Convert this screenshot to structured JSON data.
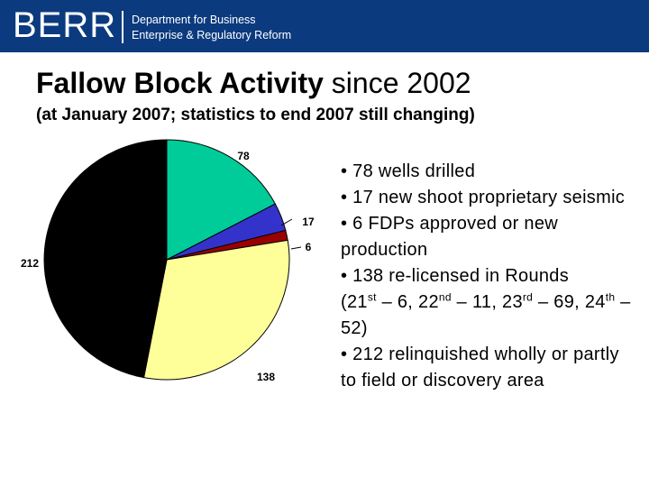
{
  "header": {
    "logo_text": "BERR",
    "dept_line1": "Department for Business",
    "dept_line2": "Enterprise & Regulatory Reform",
    "banner_color": "#0b3a7e"
  },
  "slide": {
    "title_bold": "Fallow Block Activity",
    "title_rest": " since 2002",
    "subtitle": "(at January 2007; statistics to end 2007 still changing)"
  },
  "chart_data": {
    "type": "pie",
    "title": "",
    "slices": [
      {
        "label": "78",
        "value": 78,
        "color": "#00cc99"
      },
      {
        "label": "17",
        "value": 17,
        "color": "#3333cc"
      },
      {
        "label": "6",
        "value": 6,
        "color": "#990000"
      },
      {
        "label": "138",
        "value": 138,
        "color": "#ffff99"
      },
      {
        "label": "212",
        "value": 212,
        "color": "#000000"
      }
    ],
    "legend": "none"
  },
  "bullets": {
    "b1": "• 78 wells drilled",
    "b2": "• 17 new shoot proprietary seismic",
    "b3": "• 6 FDPs approved or new production",
    "b4_main": "• 138 re-licensed in Rounds",
    "b4_p1": "(21",
    "b4_s1": "st",
    "b4_p2": " – 6, 22",
    "b4_s2": "nd",
    "b4_p3": " – 11, 23",
    "b4_s3": "rd",
    "b4_p4": " – 69, 24",
    "b4_s4": "th",
    "b4_p5": " – 52)",
    "b5": "• 212 relinquished wholly or partly to field or discovery area"
  }
}
